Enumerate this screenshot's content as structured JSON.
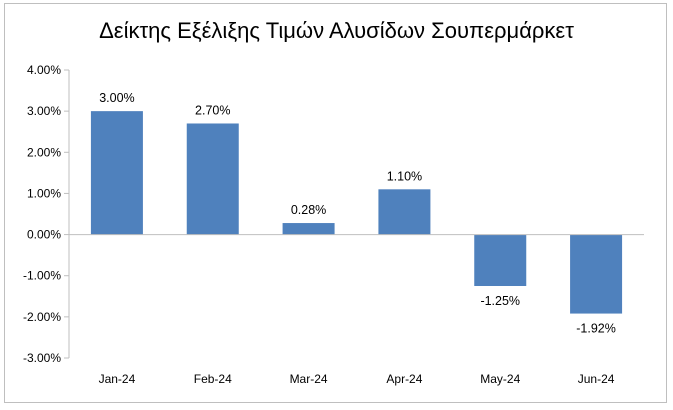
{
  "chart_data": {
    "type": "bar",
    "title": "Δείκτης Εξέλιξης Τιμών Αλυσίδων Σουπερμάρκετ",
    "xlabel": "",
    "ylabel": "",
    "categories": [
      "Jan-24",
      "Feb-24",
      "Mar-24",
      "Apr-24",
      "May-24",
      "Jun-24"
    ],
    "values": [
      3.0,
      2.7,
      0.28,
      1.1,
      -1.25,
      -1.92
    ],
    "data_labels": [
      "3.00%",
      "2.70%",
      "0.28%",
      "1.10%",
      "-1.25%",
      "-1.92%"
    ],
    "ylim": [
      -3.0,
      4.0
    ],
    "y_ticks": [
      4.0,
      3.0,
      2.0,
      1.0,
      0.0,
      -1.0,
      -2.0,
      -3.0
    ],
    "y_tick_labels": [
      "4.00%",
      "3.00%",
      "2.00%",
      "1.00%",
      "0.00%",
      "-1.00%",
      "-2.00%",
      "-3.00%"
    ],
    "grid": false,
    "legend": "none",
    "bar_color": "#4f81bd",
    "axis_color": "#bfbfbf"
  }
}
